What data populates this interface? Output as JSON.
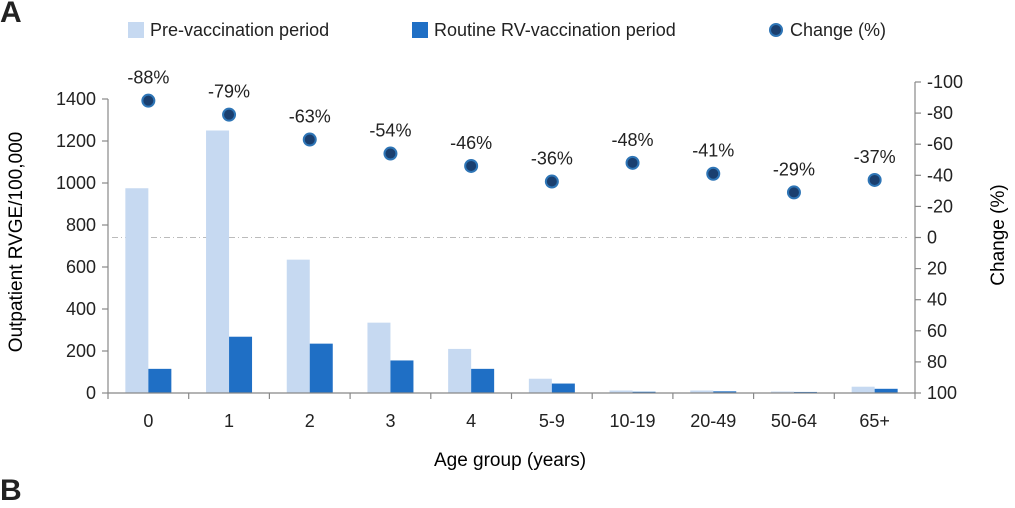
{
  "panel_label": "A",
  "next_panel_label": "B",
  "colors": {
    "pre": "#c6d9f1",
    "routine": "#1f6fc5",
    "change_dot": "#1a3f6f",
    "change_dot_stroke": "#2e75b6",
    "axis": "#888888",
    "zero_line": "#bbbbbb"
  },
  "chart_data": {
    "type": "bar",
    "xlabel": "Age group (years)",
    "ylabel": "Outpatient RVGE/100,000",
    "y2label": "Change (%)",
    "categories": [
      "0",
      "1",
      "2",
      "3",
      "4",
      "5-9",
      "10-19",
      "20-49",
      "50-64",
      "65+"
    ],
    "ylim": [
      0,
      1400
    ],
    "yticks": [
      "0",
      "200",
      "400",
      "600",
      "800",
      "1000",
      "1200",
      "1400"
    ],
    "ytick_values": [
      0,
      200,
      400,
      600,
      800,
      1000,
      1200,
      1400
    ],
    "y2lim": [
      100,
      -100
    ],
    "y2ticks": [
      "100",
      "80",
      "60",
      "40",
      "20",
      "0",
      "-20",
      "-40",
      "-60",
      "-80",
      "-100"
    ],
    "y2tick_values": [
      100,
      80,
      60,
      40,
      20,
      0,
      -20,
      -40,
      -60,
      -80,
      -100
    ],
    "series": [
      {
        "name": "Pre-vaccination period",
        "kind": "bar",
        "values": [
          975,
          1250,
          635,
          335,
          210,
          68,
          12,
          12,
          7,
          30
        ]
      },
      {
        "name": "Routine RV-vaccination period",
        "kind": "bar",
        "values": [
          115,
          268,
          235,
          155,
          115,
          45,
          6,
          8,
          5,
          20
        ]
      },
      {
        "name": "Change (%)",
        "kind": "scatter",
        "axis": "right",
        "values": [
          -88,
          -79,
          -63,
          -54,
          -46,
          -36,
          -48,
          -41,
          -29,
          -37
        ],
        "labels": [
          "-88%",
          "-79%",
          "-63%",
          "-54%",
          "-46%",
          "-36%",
          "-48%",
          "-41%",
          "-29%",
          "-37%"
        ]
      }
    ],
    "legend": "top",
    "grid": false
  }
}
